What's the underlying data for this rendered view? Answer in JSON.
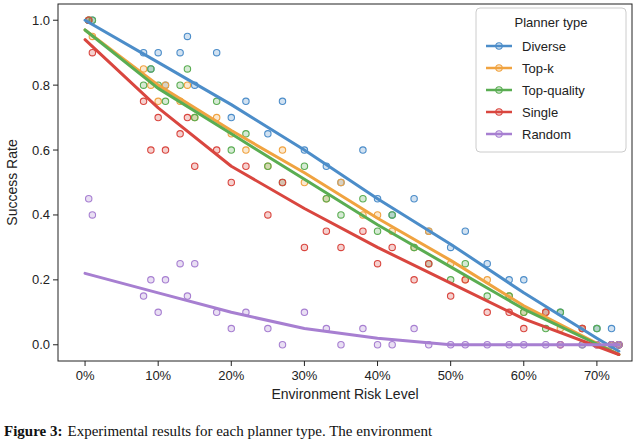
{
  "chart_data": {
    "type": "scatter",
    "x_label": "Environment Risk Level",
    "y_label": "Success Rate",
    "legend_title": "Planner type",
    "legend": "upper right",
    "grid": false,
    "marker": "circle",
    "caption": {
      "label": "Figure 3:",
      "text": "Experimental results for each planner type. The environment"
    },
    "xlim": [
      -3.7,
      74.8
    ],
    "ylim": [
      -0.05,
      1.05
    ],
    "xticks": [
      {
        "value": 0,
        "label": "0%"
      },
      {
        "value": 10,
        "label": "10%"
      },
      {
        "value": 20,
        "label": "20%"
      },
      {
        "value": 30,
        "label": "30%"
      },
      {
        "value": 40,
        "label": "40%"
      },
      {
        "value": 50,
        "label": "50%"
      },
      {
        "value": 60,
        "label": "60%"
      },
      {
        "value": 70,
        "label": "70%"
      }
    ],
    "yticks": [
      {
        "value": 0,
        "label": "0.0"
      },
      {
        "value": 0.2,
        "label": "0.2"
      },
      {
        "value": 0.4,
        "label": "0.4"
      },
      {
        "value": 0.6,
        "label": "0.6"
      },
      {
        "value": 0.8,
        "label": "0.8"
      },
      {
        "value": 1.0,
        "label": "1.0"
      }
    ],
    "series": [
      {
        "name": "Diverse",
        "color": "#4c8dc9",
        "x": [
          0.5,
          1,
          8,
          9,
          10,
          11,
          13,
          14,
          15,
          18,
          20,
          22,
          25,
          27,
          30,
          33,
          35,
          38,
          40,
          42,
          45,
          47,
          50,
          52,
          55,
          58,
          60,
          63,
          65,
          68,
          70,
          72,
          73
        ],
        "values": [
          1.0,
          1.0,
          0.9,
          0.85,
          0.9,
          0.8,
          0.9,
          0.95,
          0.8,
          0.9,
          0.7,
          0.75,
          0.65,
          0.75,
          0.6,
          0.55,
          0.5,
          0.6,
          0.45,
          0.4,
          0.45,
          0.35,
          0.3,
          0.35,
          0.25,
          0.2,
          0.2,
          0.1,
          0.1,
          0.05,
          0.05,
          0.05,
          0.0
        ],
        "trend": {
          "x": [
            0,
            10,
            20,
            30,
            40,
            50,
            60,
            70,
            73
          ],
          "values": [
            1.0,
            0.87,
            0.74,
            0.6,
            0.45,
            0.31,
            0.16,
            0.02,
            -0.02
          ]
        }
      },
      {
        "name": "Top-k",
        "color": "#f0a340",
        "x": [
          0.5,
          1,
          8,
          9,
          10,
          11,
          13,
          14,
          15,
          18,
          20,
          22,
          25,
          27,
          30,
          33,
          35,
          38,
          40,
          42,
          45,
          47,
          50,
          52,
          55,
          58,
          60,
          63,
          65,
          68,
          70,
          72,
          73
        ],
        "values": [
          1.0,
          0.95,
          0.85,
          0.8,
          0.75,
          0.8,
          0.75,
          0.8,
          0.7,
          0.7,
          0.65,
          0.6,
          0.55,
          0.6,
          0.5,
          0.45,
          0.5,
          0.4,
          0.4,
          0.35,
          0.3,
          0.35,
          0.25,
          0.2,
          0.2,
          0.15,
          0.1,
          0.1,
          0.05,
          0.05,
          0.0,
          0.0,
          0.0
        ],
        "trend": {
          "x": [
            0,
            10,
            20,
            30,
            40,
            50,
            60,
            73
          ],
          "values": [
            0.97,
            0.8,
            0.66,
            0.53,
            0.39,
            0.26,
            0.12,
            -0.03
          ]
        }
      },
      {
        "name": "Top-quality",
        "color": "#5aad52",
        "x": [
          0.5,
          1,
          8,
          9,
          10,
          11,
          13,
          14,
          15,
          18,
          20,
          22,
          25,
          27,
          30,
          33,
          35,
          38,
          40,
          42,
          45,
          47,
          50,
          52,
          55,
          58,
          60,
          63,
          65,
          68,
          70,
          72,
          73
        ],
        "values": [
          1.0,
          1.0,
          0.8,
          0.85,
          0.8,
          0.75,
          0.8,
          0.85,
          0.7,
          0.75,
          0.6,
          0.65,
          0.55,
          0.5,
          0.55,
          0.45,
          0.4,
          0.45,
          0.35,
          0.4,
          0.3,
          0.25,
          0.2,
          0.25,
          0.15,
          0.15,
          0.1,
          0.05,
          0.1,
          0.0,
          0.05,
          0.0,
          0.0
        ],
        "trend": {
          "x": [
            0,
            10,
            20,
            30,
            40,
            50,
            60,
            73
          ],
          "values": [
            0.97,
            0.79,
            0.65,
            0.51,
            0.37,
            0.24,
            0.11,
            -0.03
          ]
        }
      },
      {
        "name": "Single",
        "color": "#d9463f",
        "x": [
          0.5,
          1,
          8,
          9,
          10,
          11,
          13,
          14,
          15,
          18,
          20,
          22,
          25,
          27,
          30,
          33,
          35,
          38,
          40,
          42,
          45,
          47,
          50,
          52,
          55,
          58,
          60,
          63,
          65,
          68,
          70,
          72,
          73
        ],
        "values": [
          1.0,
          0.9,
          0.75,
          0.6,
          0.7,
          0.6,
          0.65,
          0.7,
          0.55,
          0.6,
          0.5,
          0.55,
          0.4,
          0.5,
          0.3,
          0.35,
          0.3,
          0.35,
          0.25,
          0.3,
          0.2,
          0.25,
          0.15,
          0.2,
          0.1,
          0.1,
          0.05,
          0.1,
          0.0,
          0.05,
          0.0,
          0.0,
          0.0
        ],
        "trend": {
          "x": [
            0,
            10,
            20,
            30,
            40,
            50,
            60,
            73
          ],
          "values": [
            0.94,
            0.73,
            0.55,
            0.42,
            0.3,
            0.19,
            0.08,
            -0.03
          ]
        }
      },
      {
        "name": "Random",
        "color": "#a77fd1",
        "x": [
          0.5,
          1,
          8,
          9,
          10,
          11,
          13,
          14,
          15,
          18,
          20,
          22,
          25,
          27,
          30,
          33,
          35,
          38,
          40,
          42,
          45,
          47,
          50,
          52,
          55,
          58,
          60,
          63,
          65,
          68,
          70,
          72,
          73
        ],
        "values": [
          0.45,
          0.4,
          0.15,
          0.2,
          0.1,
          0.2,
          0.25,
          0.15,
          0.25,
          0.1,
          0.05,
          0.1,
          0.05,
          0.0,
          0.1,
          0.05,
          0.0,
          0.05,
          0.0,
          0.0,
          0.05,
          0.0,
          0.0,
          0.0,
          0.0,
          0.0,
          0.0,
          0.0,
          0.0,
          0.0,
          0.0,
          0.0,
          0.0
        ],
        "trend": {
          "x": [
            0,
            10,
            20,
            30,
            40,
            50,
            60,
            73
          ],
          "values": [
            0.22,
            0.16,
            0.1,
            0.05,
            0.02,
            0.0,
            0.0,
            0.0
          ]
        }
      }
    ]
  }
}
